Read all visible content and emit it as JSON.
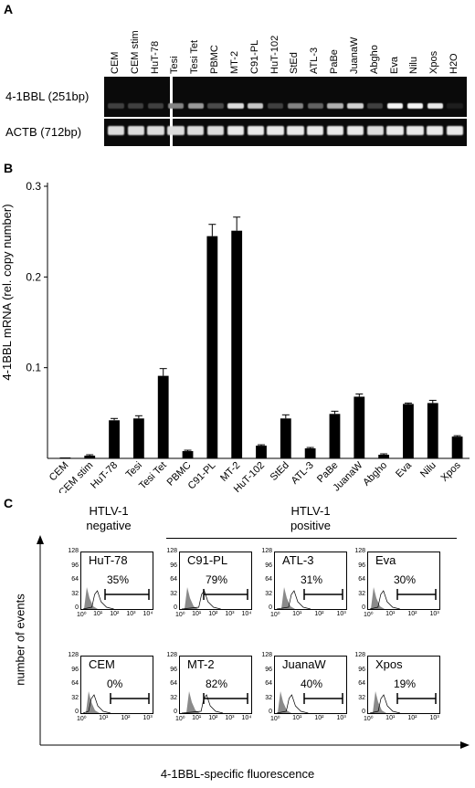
{
  "panel_a": {
    "letter": "A",
    "lanes": [
      "CEM",
      "CEM stim",
      "HuT-78",
      "Tesi",
      "Tesi Tet",
      "PBMC",
      "MT-2",
      "C91-PL",
      "HuT-102",
      "StEd",
      "ATL-3",
      "PaBe",
      "JuanaW",
      "Abgho",
      "Eva",
      "Nilu",
      "Xpos",
      "H2O"
    ],
    "row_labels": [
      "4-1BBL (251bp)",
      "ACTB (712bp)"
    ],
    "band_4_1bbl": [
      0.15,
      0.15,
      0.15,
      0.45,
      0.55,
      0.2,
      0.85,
      0.75,
      0.15,
      0.45,
      0.3,
      0.65,
      0.8,
      0.15,
      0.95,
      0.95,
      0.9,
      0.0
    ],
    "band_actb": [
      0.85,
      0.85,
      0.85,
      0.85,
      0.85,
      0.85,
      0.9,
      0.9,
      0.9,
      0.9,
      0.9,
      0.9,
      0.9,
      0.85,
      0.9,
      0.9,
      0.9,
      0.9
    ]
  },
  "panel_b": {
    "letter": "B",
    "chart_data": {
      "type": "bar",
      "categories": [
        "CEM",
        "CEM stim",
        "HuT-78",
        "Tesi",
        "Tesi Tet",
        "PBMC",
        "C91-PL",
        "MT-2",
        "HuT-102",
        "StEd",
        "ATL-3",
        "PaBe",
        "JuanaW",
        "Abgho",
        "Eva",
        "Nilu",
        "Xpos"
      ],
      "values": [
        0.001,
        0.003,
        0.042,
        0.044,
        0.091,
        0.008,
        0.245,
        0.251,
        0.014,
        0.044,
        0.011,
        0.049,
        0.068,
        0.004,
        0.06,
        0.061,
        0.024
      ],
      "errors": [
        0.0,
        0.001,
        0.002,
        0.003,
        0.008,
        0.001,
        0.013,
        0.015,
        0.001,
        0.004,
        0.001,
        0.003,
        0.003,
        0.001,
        0.001,
        0.003,
        0.001
      ],
      "ylabel": "4-1BBL mRNA (rel. copy number)",
      "ylim": [
        0,
        0.3
      ],
      "yticks": [
        "0.3",
        "0.2",
        "0.1"
      ],
      "bar_color": "#000000"
    }
  },
  "panel_c": {
    "letter": "C",
    "negative_label_line1": "HTLV-1",
    "negative_label_line2": "negative",
    "positive_label_line1": "HTLV-1",
    "positive_label_line2": "positive",
    "ylabel": "number of events",
    "xlabel": "4-1BBL-specific fluorescence",
    "yticks": [
      "128",
      "96",
      "64",
      "32",
      "0"
    ],
    "xticks_4": [
      "10⁰",
      "10¹",
      "10²",
      "10³",
      "10⁴"
    ],
    "xticks_3": [
      "10⁰",
      "10¹",
      "10²",
      "10³"
    ],
    "histograms": [
      {
        "name": "HuT-78",
        "pct": "35%",
        "decades": 4
      },
      {
        "name": "C91-PL",
        "pct": "79%",
        "decades": 4
      },
      {
        "name": "ATL-3",
        "pct": "31%",
        "decades": 3
      },
      {
        "name": "Eva",
        "pct": "30%",
        "decades": 3
      },
      {
        "name": "CEM",
        "pct": "0%",
        "decades": 3
      },
      {
        "name": "MT-2",
        "pct": "82%",
        "decades": 4
      },
      {
        "name": "JuanaW",
        "pct": "40%",
        "decades": 3
      },
      {
        "name": "Xpos",
        "pct": "19%",
        "decades": 3
      }
    ]
  }
}
